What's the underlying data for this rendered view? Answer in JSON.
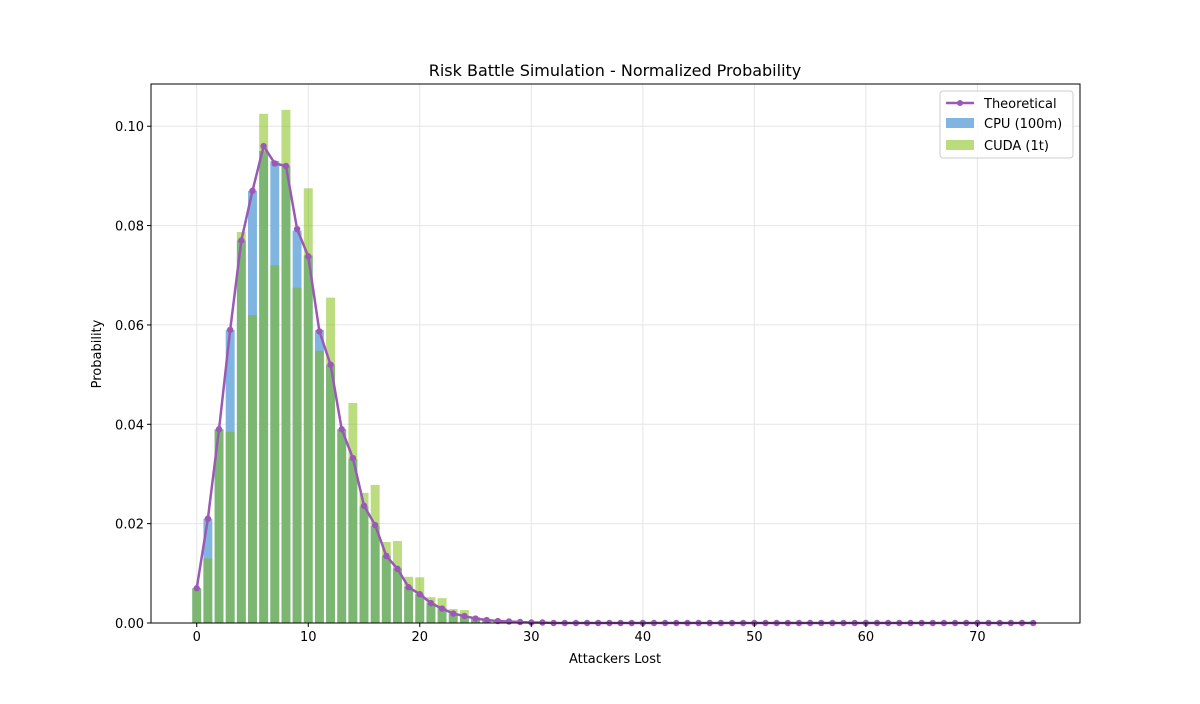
{
  "chart_data": {
    "type": "bar",
    "title": "Risk Battle Simulation - Normalized Probability",
    "xlabel": "Attackers Lost",
    "ylabel": "Probability",
    "xlim": [
      -4.1,
      79.2
    ],
    "ylim": [
      0,
      0.1085
    ],
    "xticks": [
      0,
      10,
      20,
      30,
      40,
      50,
      60,
      70
    ],
    "yticks": [
      "0.00",
      "0.02",
      "0.04",
      "0.06",
      "0.08",
      "0.10"
    ],
    "grid": true,
    "legend_position": "top-right",
    "series": [
      {
        "name": "Theoretical",
        "kind": "line",
        "color": "#9b59b6",
        "values": [
          0.007,
          0.021,
          0.039,
          0.059,
          0.077,
          0.087,
          0.096,
          0.0925,
          0.092,
          0.0793,
          0.0738,
          0.0587,
          0.052,
          0.039,
          0.0332,
          0.0236,
          0.0197,
          0.0135,
          0.0109,
          0.0072,
          0.0058,
          0.004,
          0.0029,
          0.0019,
          0.0014,
          0.0009,
          0.0006,
          0.0004,
          0.0003,
          0.0002,
          0.0001,
          0.0001,
          0,
          0,
          0,
          0,
          0,
          0,
          0,
          0,
          0,
          0,
          0,
          0,
          0,
          0,
          0,
          0,
          0,
          0,
          0,
          0,
          0,
          0,
          0,
          0,
          0,
          0,
          0,
          0,
          0,
          0,
          0,
          0,
          0,
          0,
          0,
          0,
          0,
          0,
          0,
          0,
          0,
          0,
          0,
          0
        ]
      },
      {
        "name": "CPU (100m)",
        "kind": "bar",
        "color": "#7fb5e0",
        "values": [
          0.007,
          0.021,
          0.039,
          0.059,
          0.077,
          0.087,
          0.095,
          0.093,
          0.092,
          0.079,
          0.074,
          0.059,
          0.052,
          0.039,
          0.033,
          0.0235,
          0.0195,
          0.0135,
          0.011,
          0.0073,
          0.0058,
          0.004,
          0.003,
          0.0019,
          0.0014,
          0.0009,
          0.0006,
          0.0004,
          0.0003,
          0.0002,
          0.0001
        ]
      },
      {
        "name": "CUDA (1t)",
        "kind": "bar",
        "color": "#bbdc7c",
        "values": [
          0.007,
          0.013,
          0.039,
          0.0385,
          0.0787,
          0.062,
          0.1025,
          0.072,
          0.1033,
          0.0675,
          0.0875,
          0.0548,
          0.0655,
          0.039,
          0.0443,
          0.0262,
          0.0278,
          0.0163,
          0.0165,
          0.0093,
          0.0092,
          0.0052,
          0.005,
          0.0028,
          0.0026,
          0.0012,
          0.0006,
          0.0003,
          0.0002,
          0.0001,
          0.0001
        ]
      }
    ]
  }
}
